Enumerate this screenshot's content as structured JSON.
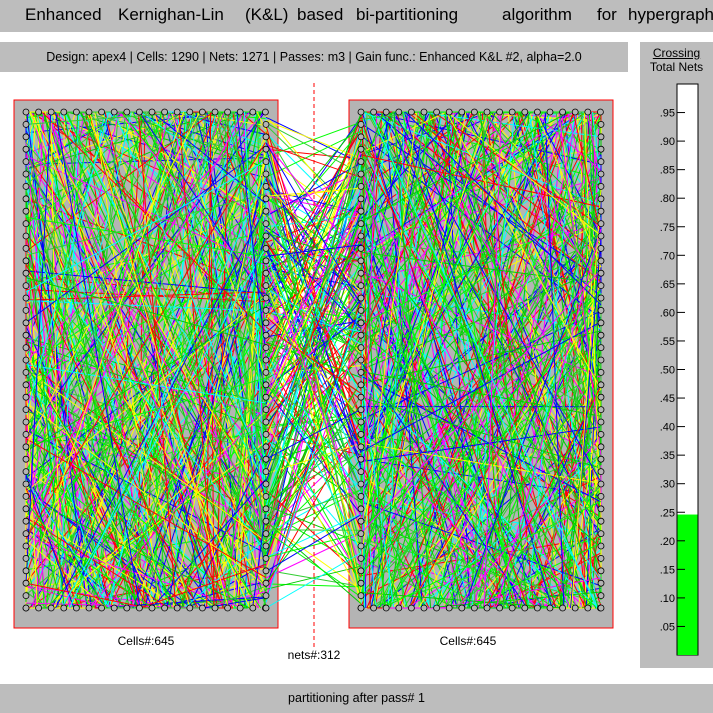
{
  "title_words": [
    "Enhanced",
    "Kernighan-Lin",
    "(K&L)",
    "based",
    "bi-partitioning",
    "algorithm",
    "for",
    "hypergraphs"
  ],
  "info": {
    "text": "Design: apex4  |  Cells: 1290  |  Nets: 1271  |  Passes: m3  |  Gain func.: Enhanced K&L #2, alpha=2.0"
  },
  "gauge": {
    "title_line1": "Crossing",
    "title_line2": "Total Nets",
    "ticks": [
      ".95",
      ".90",
      ".85",
      ".80",
      ".75",
      ".70",
      ".65",
      ".60",
      ".55",
      ".50",
      ".45",
      ".40",
      ".35",
      ".30",
      ".25",
      ".20",
      ".15",
      ".10",
      ".05"
    ],
    "fill_fraction": 0.246,
    "fill_color": "#00ff00"
  },
  "partitions": {
    "left_label": "Cells#:645",
    "right_label": "Cells#:645",
    "cut_label": "nets#:312",
    "border_color": "#ff0000",
    "fill_color": "#b4b4b4"
  },
  "net_colors": [
    "#ff0000",
    "#00ff00",
    "#0000ff",
    "#ffff00",
    "#00ffff",
    "#ff00ff",
    "#00cc00",
    "#33cc33"
  ],
  "status": {
    "text": "partitioning after pass# 1"
  }
}
